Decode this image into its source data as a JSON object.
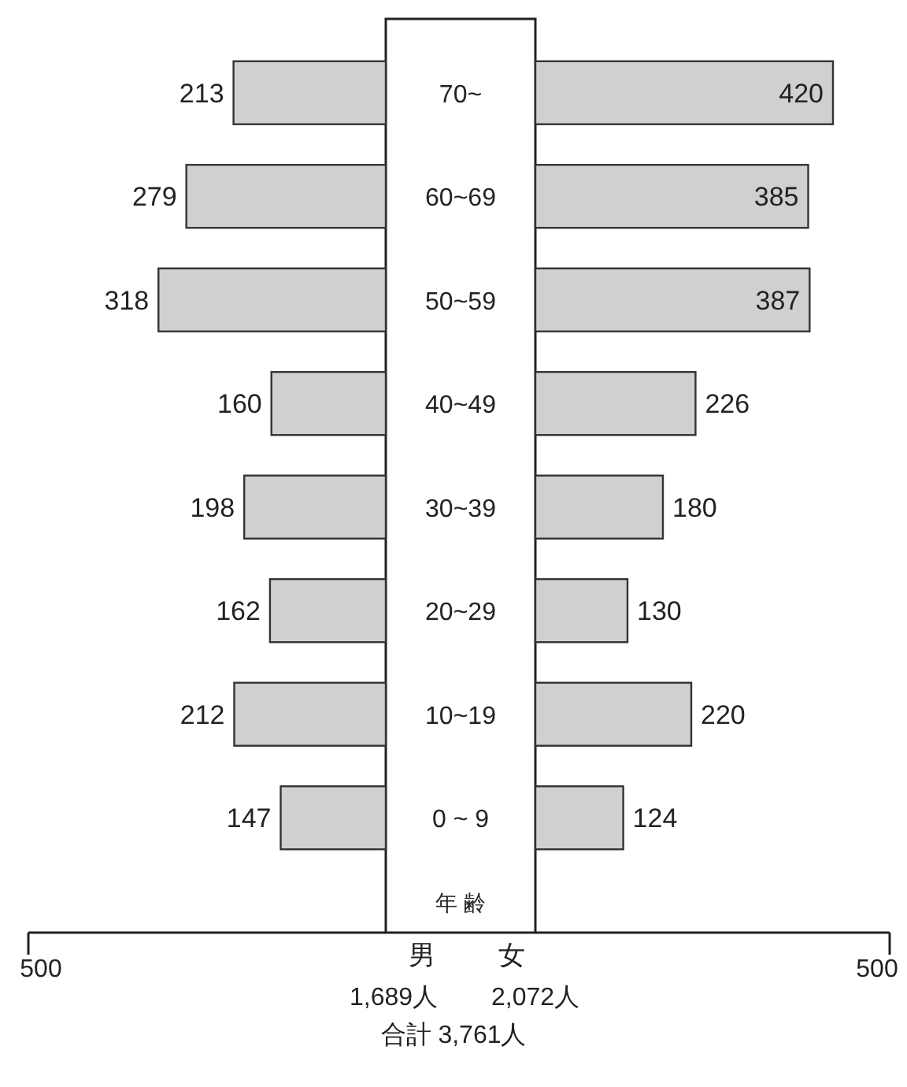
{
  "chart_data": [
    {
      "type": "bar",
      "orientation": "horizontal",
      "categories": [
        "70~",
        "60~69",
        "50~59",
        "40~49",
        "30~39",
        "20~29",
        "10~19",
        "0 ~ 9"
      ],
      "values": [
        213,
        279,
        318,
        160,
        198,
        162,
        212,
        147
      ],
      "color": "#d0d0d0",
      "xlim": [
        500,
        0
      ],
      "xticks": [
        500
      ],
      "data_labels": true,
      "xlabel": "男",
      "ylabel": "年 齢",
      "annotations": [
        "1,689人"
      ]
    },
    {
      "type": "bar",
      "orientation": "horizontal",
      "values": [
        420,
        385,
        387,
        226,
        180,
        130,
        220,
        124
      ],
      "color": "#d0d0d0",
      "xlim": [
        0,
        500
      ],
      "xticks": [
        500
      ],
      "data_labels": true,
      "xlabel": "女",
      "tick_labels": "x",
      "annotations": [
        "2,072人",
        "合計 3,761人"
      ]
    }
  ]
}
